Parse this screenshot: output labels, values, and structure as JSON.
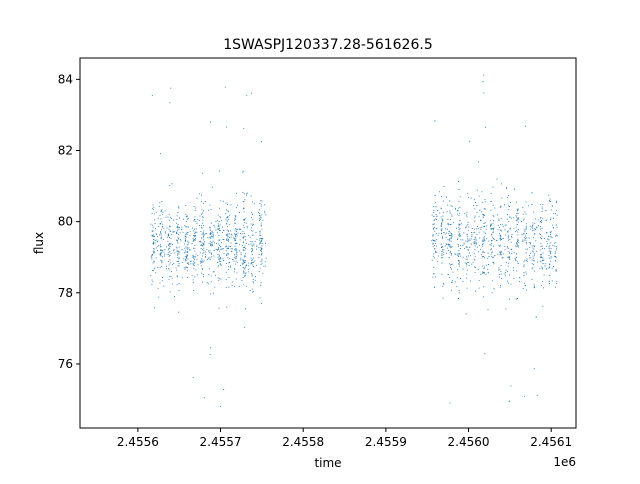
{
  "chart_data": {
    "type": "scatter",
    "title": "1SWASPJ120337.28-561626.5",
    "xlabel": "time",
    "ylabel": "flux",
    "x_offset_label": "1e6",
    "xlim": [
      2.45553,
      2.45613
    ],
    "ylim": [
      74.2,
      84.6
    ],
    "x_ticks": [
      2.4556,
      2.4557,
      2.4558,
      2.4559,
      2.456,
      2.4561
    ],
    "x_tick_labels": [
      "2.4556",
      "2.4557",
      "2.4558",
      "2.4559",
      "2.4560",
      "2.4561"
    ],
    "y_ticks": [
      76,
      78,
      80,
      82,
      84
    ],
    "y_tick_labels": [
      "76",
      "78",
      "80",
      "82",
      "84"
    ],
    "grid": false,
    "legend": "none",
    "marker_color": "#1f77b4",
    "series": [
      {
        "segments": [
          {
            "x_start": 2.455615,
            "x_end": 2.455755,
            "center": 79.4,
            "spread": 1.5
          },
          {
            "x_start": 2.455955,
            "x_end": 2.456107,
            "center": 79.5,
            "spread": 1.6
          }
        ],
        "clumps": [
          2.455618,
          2.455628,
          2.455638,
          2.455648,
          2.455658,
          2.455668,
          2.455678,
          2.455688,
          2.455698,
          2.455708,
          2.455718,
          2.455728,
          2.455738,
          2.455748,
          2.455958,
          2.455968,
          2.455978,
          2.455988,
          2.455998,
          2.456008,
          2.456018,
          2.456028,
          2.456038,
          2.456048,
          2.456058,
          2.456068,
          2.456078,
          2.456088,
          2.456098,
          2.456106
        ]
      }
    ]
  }
}
